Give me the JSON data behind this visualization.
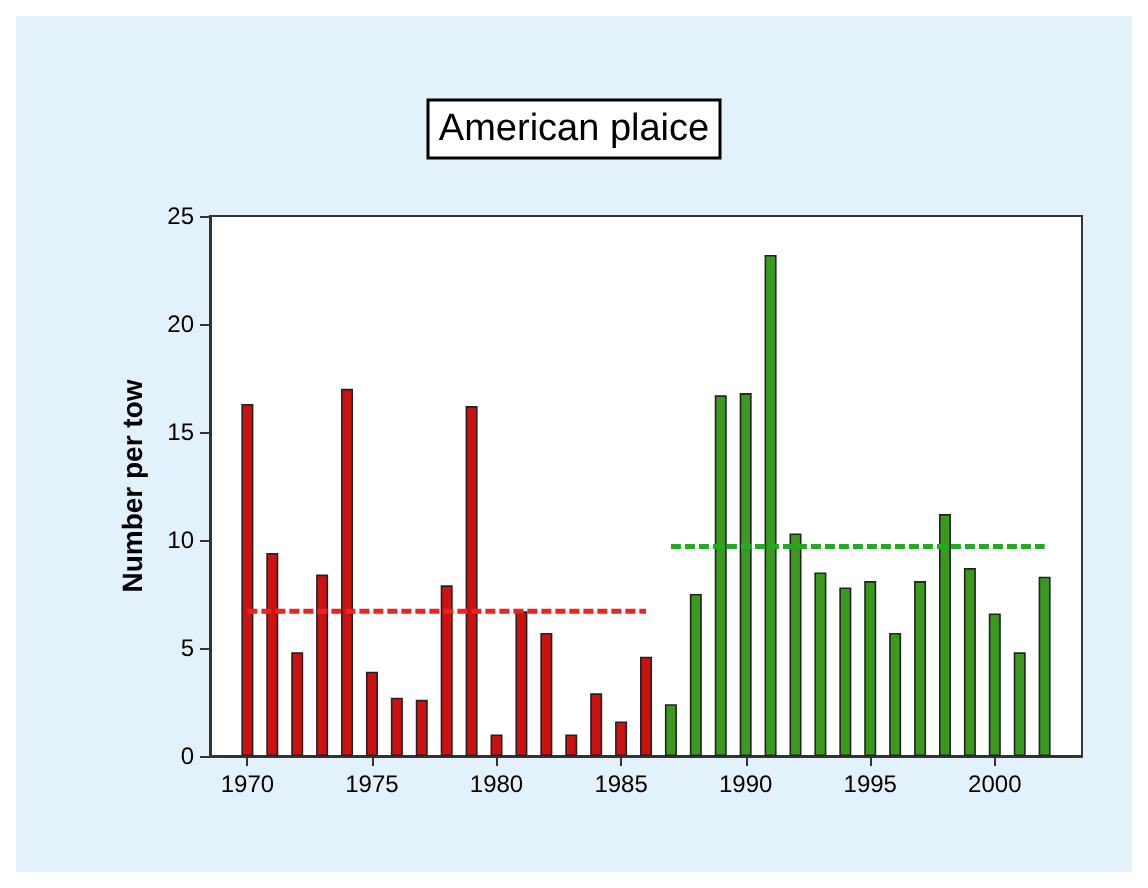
{
  "chart_data": {
    "type": "bar",
    "title": "American plaice",
    "ylabel": "Number per tow",
    "xlim": [
      1968.5,
      2003.5
    ],
    "xticks": [
      1970,
      1975,
      1980,
      1985,
      1990,
      1995,
      2000
    ],
    "ylim": [
      0,
      25
    ],
    "yticks": [
      0,
      5,
      10,
      15,
      20,
      25
    ],
    "grid": false,
    "series": [
      {
        "color": "#cc1111",
        "x": [
          1970,
          1971,
          1972,
          1973,
          1974,
          1975,
          1976,
          1977,
          1978,
          1979,
          1980,
          1981,
          1982,
          1983,
          1984,
          1985,
          1986
        ],
        "values": [
          16.3,
          9.4,
          4.8,
          8.4,
          17.0,
          3.9,
          2.7,
          2.6,
          7.9,
          16.2,
          1.0,
          6.7,
          5.7,
          1.0,
          2.9,
          1.6,
          4.6
        ]
      },
      {
        "color": "#3a9a1e",
        "x": [
          1987,
          1988,
          1989,
          1990,
          1991,
          1992,
          1993,
          1994,
          1995,
          1996,
          1997,
          1998,
          1999,
          2000,
          2001,
          2002
        ],
        "values": [
          2.4,
          7.5,
          16.7,
          16.8,
          23.2,
          10.3,
          8.5,
          7.8,
          8.1,
          5.7,
          8.1,
          11.2,
          8.7,
          6.6,
          4.8,
          8.3
        ]
      },
      {
        "type": "line",
        "color": "#ee2222",
        "line_style": "dashed",
        "marker": "none",
        "x": [
          1970,
          1986
        ],
        "values": [
          6.7,
          6.7
        ]
      },
      {
        "type": "line",
        "color": "#22aa22",
        "line_style": "dashed",
        "marker": "none",
        "x": [
          1987,
          2002
        ],
        "values": [
          9.7,
          9.7
        ]
      }
    ]
  }
}
